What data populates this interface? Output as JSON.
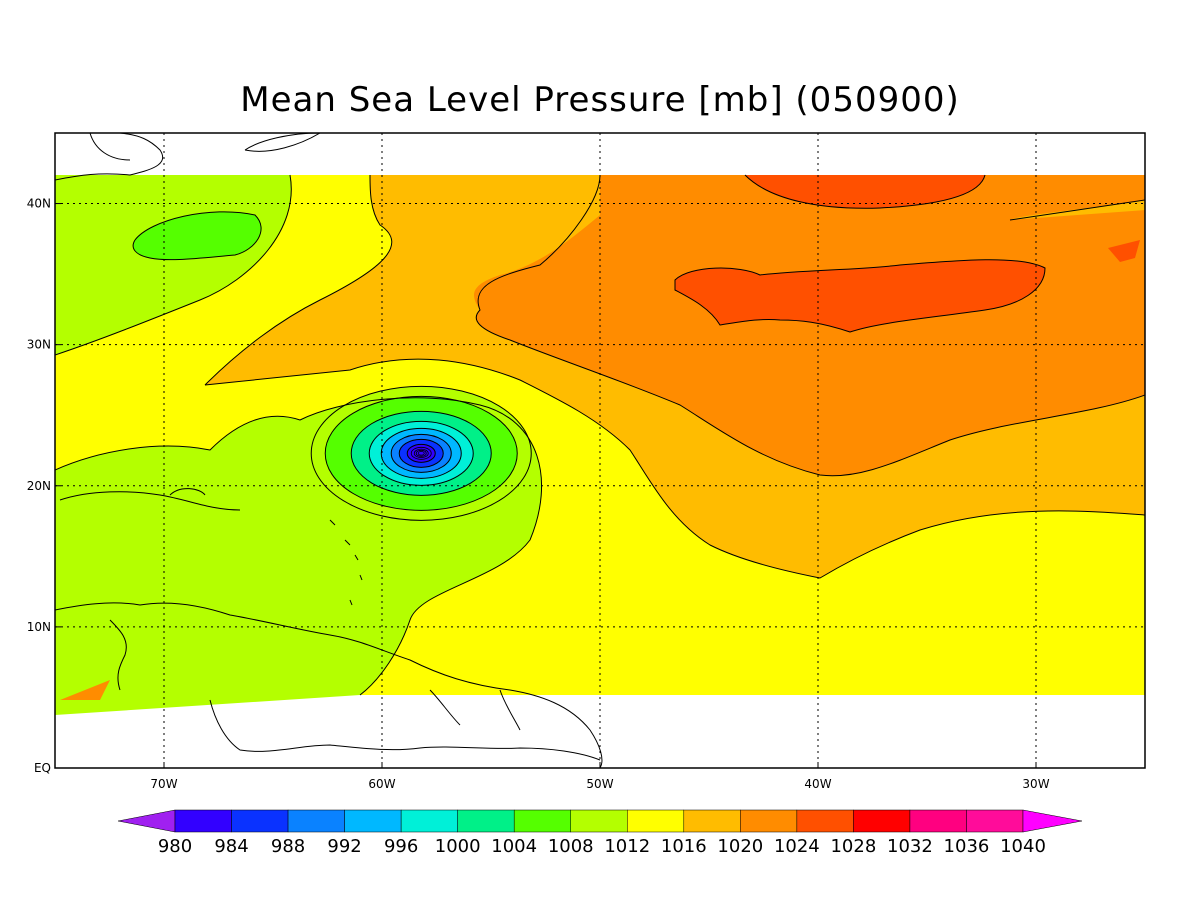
{
  "title": "Mean Sea Level Pressure [mb] (050900)",
  "map": {
    "lon_range": [
      -75,
      -25
    ],
    "lat_range": [
      0,
      45
    ],
    "data_lat_range": [
      4,
      42
    ],
    "grid_lines": "dotted",
    "x_ticks": [
      {
        "lon": -70,
        "label": "70W"
      },
      {
        "lon": -60,
        "label": "60W"
      },
      {
        "lon": -50,
        "label": "50W"
      },
      {
        "lon": -40,
        "label": "40W"
      },
      {
        "lon": -30,
        "label": "30W"
      }
    ],
    "y_ticks": [
      {
        "lat": 0,
        "label": "EQ"
      },
      {
        "lat": 10,
        "label": "10N"
      },
      {
        "lat": 20,
        "label": "20N"
      },
      {
        "lat": 30,
        "label": "30N"
      },
      {
        "lat": 40,
        "label": "40N"
      }
    ],
    "cyclone_center": {
      "lon": -58.2,
      "lat": 22.3
    }
  },
  "colorbar": {
    "levels": [
      "980",
      "984",
      "988",
      "992",
      "996",
      "1000",
      "1004",
      "1008",
      "1012",
      "1016",
      "1020",
      "1024",
      "1028",
      "1032",
      "1036",
      "1040"
    ],
    "colors": [
      "#a020f0",
      "#3200ff",
      "#0a32ff",
      "#0a82ff",
      "#00b8ff",
      "#00f0d8",
      "#00f088",
      "#55ff00",
      "#b4ff00",
      "#ffff00",
      "#ffbc00",
      "#ff8c00",
      "#ff5000",
      "#ff0000",
      "#ff0080",
      "#ff0c9a",
      "#ff00ff"
    ]
  }
}
